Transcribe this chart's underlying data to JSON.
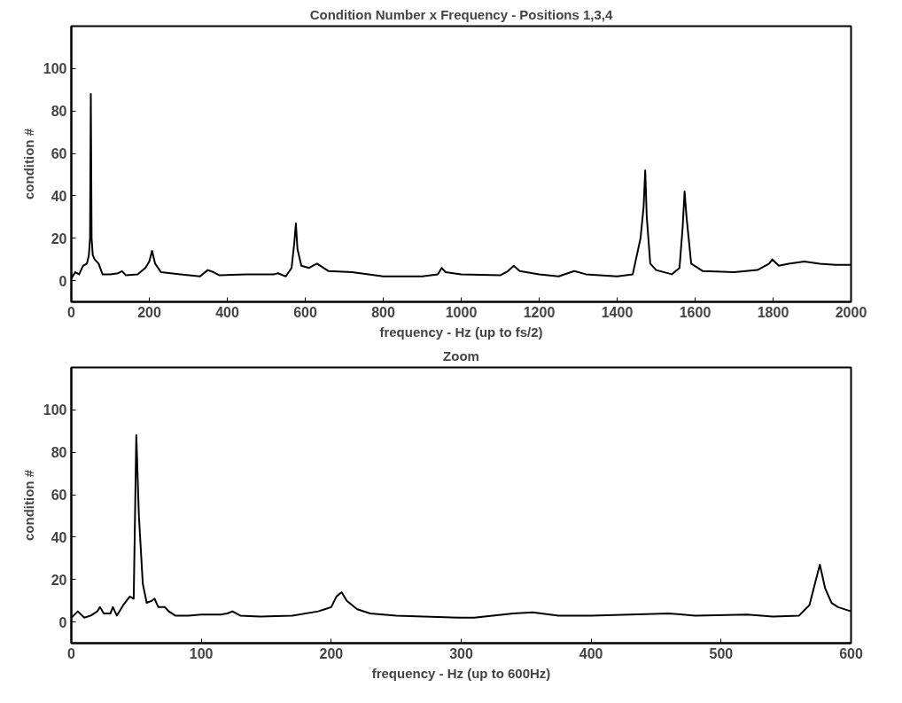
{
  "chart_data": [
    {
      "type": "line",
      "title": "Condition Number x Frequency - Positions 1,3,4",
      "xlabel": "frequency - Hz (up to fs/2)",
      "ylabel": "condition #",
      "grid": false,
      "xlim": [
        0,
        2000
      ],
      "ylim": [
        -10,
        120
      ],
      "xticks": [
        0,
        200,
        400,
        600,
        800,
        1000,
        1200,
        1400,
        1600,
        1800,
        2000
      ],
      "yticks": [
        0,
        20,
        40,
        60,
        80,
        100
      ],
      "x": [
        0,
        10,
        20,
        30,
        40,
        45,
        48,
        50,
        52,
        55,
        60,
        70,
        80,
        100,
        120,
        130,
        140,
        170,
        190,
        200,
        207,
        215,
        230,
        280,
        330,
        350,
        365,
        380,
        450,
        520,
        530,
        550,
        565,
        572,
        576,
        580,
        590,
        610,
        630,
        660,
        720,
        800,
        900,
        940,
        950,
        960,
        1000,
        1100,
        1120,
        1135,
        1150,
        1200,
        1250,
        1290,
        1320,
        1400,
        1440,
        1460,
        1468,
        1472,
        1476,
        1485,
        1500,
        1540,
        1560,
        1568,
        1573,
        1578,
        1590,
        1620,
        1700,
        1760,
        1790,
        1798,
        1815,
        1840,
        1880,
        1920,
        1960,
        2000
      ],
      "series": [
        {
          "color": "#000000",
          "values": [
            1,
            4,
            3,
            7,
            8,
            12,
            20,
            88,
            20,
            12,
            10,
            8,
            3,
            3,
            3.5,
            4.5,
            2.5,
            3,
            6,
            9,
            14,
            8,
            4,
            3,
            2,
            5,
            4,
            2.5,
            3,
            3,
            3.5,
            2,
            6,
            18,
            27,
            15,
            7,
            6,
            8,
            4.5,
            4,
            2,
            2,
            3,
            6,
            4,
            3,
            2.5,
            4.5,
            7,
            4.5,
            3,
            2,
            4.5,
            3,
            2,
            3,
            20,
            35,
            52,
            30,
            8,
            5,
            3,
            6,
            25,
            42,
            30,
            8,
            4.5,
            4,
            5,
            8,
            10,
            7,
            8,
            9,
            8,
            7.5,
            7.5
          ]
        }
      ]
    },
    {
      "type": "line",
      "title": "Zoom",
      "xlabel": "frequency - Hz (up to 600Hz)",
      "ylabel": "condition #",
      "grid": false,
      "xlim": [
        0,
        600
      ],
      "ylim": [
        -10,
        120
      ],
      "xticks": [
        0,
        100,
        200,
        300,
        400,
        500,
        600
      ],
      "yticks": [
        0,
        20,
        40,
        60,
        80,
        100
      ],
      "x": [
        0,
        5,
        10,
        15,
        20,
        22,
        25,
        30,
        32,
        35,
        40,
        45,
        48,
        50,
        52,
        55,
        58,
        62,
        64,
        67,
        72,
        75,
        80,
        90,
        100,
        115,
        120,
        124,
        130,
        145,
        170,
        190,
        195,
        200,
        204,
        208,
        212,
        220,
        230,
        250,
        300,
        310,
        340,
        355,
        375,
        400,
        460,
        480,
        520,
        540,
        560,
        568,
        573,
        576,
        580,
        585,
        590,
        600
      ],
      "series": [
        {
          "color": "#000000",
          "values": [
            2,
            5,
            2,
            3,
            5,
            7,
            4,
            4,
            7,
            3,
            8,
            12,
            11,
            88,
            50,
            18,
            9,
            10,
            11,
            7,
            7,
            5,
            3,
            3,
            3.5,
            3.5,
            4,
            5,
            3,
            2.5,
            3,
            5,
            6,
            7,
            12,
            14,
            10,
            6,
            4,
            3,
            2,
            2,
            4,
            4.5,
            3,
            3,
            4,
            3,
            3.5,
            2.5,
            3,
            8,
            20,
            27,
            16,
            9,
            7,
            5
          ]
        }
      ]
    }
  ]
}
